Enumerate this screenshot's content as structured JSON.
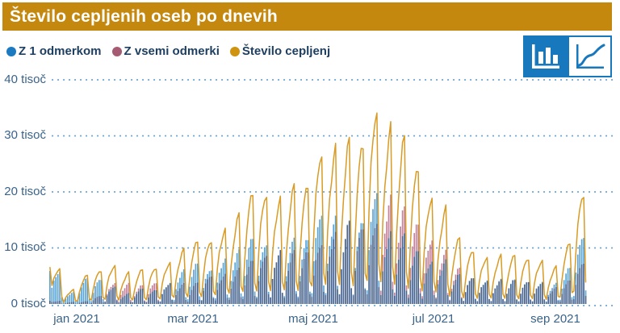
{
  "header": {
    "title": "Število cepljenih oseb po dnevih",
    "bg_color": "#c5880e"
  },
  "legend": {
    "items": [
      {
        "label": "Z 1 odmerkom",
        "color": "#1b7ac0"
      },
      {
        "label": "Z vsemi odmerki",
        "color": "#a55c72"
      },
      {
        "label": "Število cepljenj",
        "color": "#d0930f"
      }
    ]
  },
  "toolbar": {
    "buttons": [
      {
        "name": "bar-chart-view",
        "selected": true,
        "accent": "#1878be"
      },
      {
        "name": "line-chart-view",
        "selected": false,
        "accent": "#1878be"
      }
    ]
  },
  "chart_data": {
    "type": "bar",
    "title": "Število cepljenih oseb po dnevih",
    "x_unit": "day",
    "weeks": 39,
    "note": "daily values in thousands; weekly_peaks give each week's max, weekday_profile shapes days within a week",
    "weekday_profile": [
      0.12,
      0.45,
      0.68,
      0.82,
      0.95,
      1.0,
      0.2
    ],
    "first_days_override": [
      [
        6.5,
        5.9,
        0.6
      ],
      [
        3.3,
        2.9,
        0.4
      ]
    ],
    "series": [
      {
        "name": "Z 1 odmerkom",
        "type": "bar",
        "color": "#5ca4d4",
        "weekly_peaks": [
          5.9,
          2.1,
          4.5,
          4.5,
          3.2,
          1.9,
          2.7,
          2.6,
          3.8,
          5.9,
          7.2,
          6.3,
          8.1,
          9.3,
          11.7,
          11.0,
          9.5,
          11.3,
          11.6,
          16.5,
          15.4,
          14.3,
          14.8,
          20.6,
          12.6,
          12.2,
          9.8,
          7.8,
          7.7,
          5.2,
          4.8,
          4.3,
          4.3,
          4.3,
          4.1,
          4.0,
          3.6,
          6.4,
          12.4
        ]
      },
      {
        "name": "Z vsemi odmerki",
        "type": "bar",
        "color": "#c2839a",
        "weekly_peaks": [
          0.6,
          0.4,
          0.5,
          1.5,
          3.8,
          3.6,
          3.3,
          3.9,
          3.7,
          3.6,
          3.8,
          5.2,
          5.4,
          6.2,
          7.8,
          9.0,
          9.5,
          9.2,
          9.4,
          11.0,
          12.6,
          14.2,
          13.7,
          14.9,
          18.9,
          16.8,
          14.7,
          11.7,
          9.3,
          6.3,
          4.8,
          4.2,
          4.2,
          4.2,
          4.1,
          3.9,
          2.9,
          4.2,
          7.6
        ]
      },
      {
        "name": "Število cepljenj",
        "type": "line",
        "color": "#d89b25",
        "weekly_peaks": [
          6.5,
          2.5,
          5.0,
          6.0,
          7.0,
          5.5,
          6.0,
          6.5,
          7.5,
          9.5,
          11.0,
          11.5,
          13.5,
          15.5,
          19.5,
          20.0,
          19.0,
          20.5,
          21.0,
          27.5,
          28.0,
          28.5,
          28.5,
          35.5,
          31.5,
          29.0,
          24.5,
          19.5,
          17.0,
          11.5,
          9.6,
          8.5,
          8.5,
          8.5,
          8.2,
          7.9,
          6.5,
          10.6,
          20.0
        ]
      }
    ],
    "overlap_color": "#46648f",
    "grid_dot_color": "#5f9fd6",
    "y_axis": {
      "max": 40000,
      "unit": "tisoč",
      "ticks": [
        {
          "value": 40000,
          "label": "40 tisoč"
        },
        {
          "value": 30000,
          "label": "30 tisoč"
        },
        {
          "value": 20000,
          "label": "20 tisoč"
        },
        {
          "value": 10000,
          "label": "10 tisoč"
        },
        {
          "value": 0,
          "label": "0 tisoč"
        }
      ]
    },
    "x_axis": {
      "months": [
        {
          "label": "jan 2021",
          "day": 14
        },
        {
          "label": "mar 2021",
          "day": 73
        },
        {
          "label": "maj 2021",
          "day": 134
        },
        {
          "label": "jul 2021",
          "day": 195
        },
        {
          "label": "sep 2021",
          "day": 257
        }
      ]
    }
  }
}
